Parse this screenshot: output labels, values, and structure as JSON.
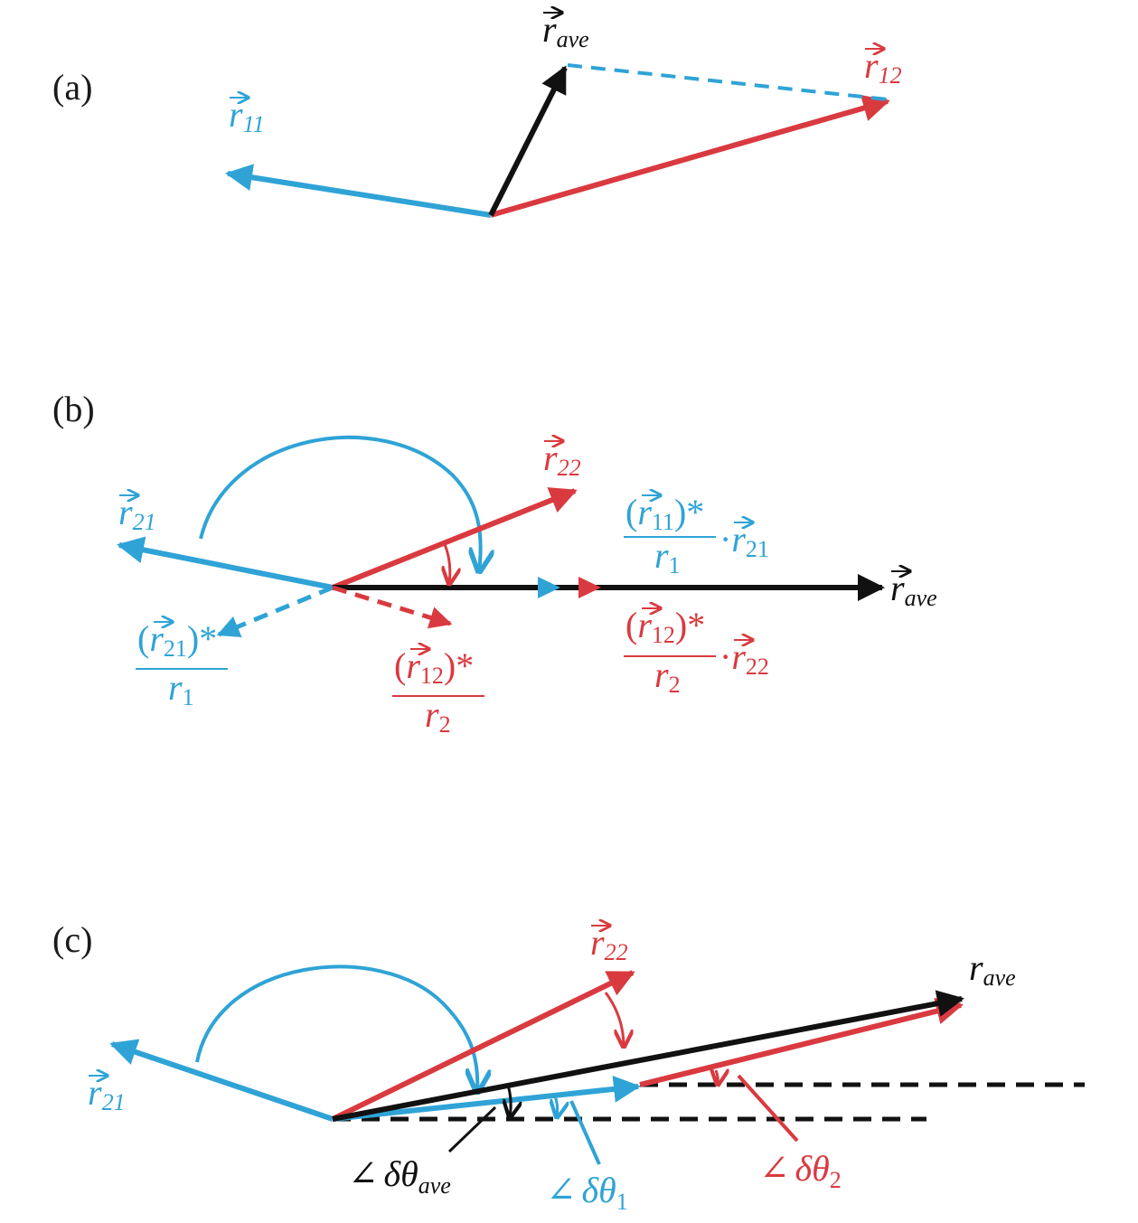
{
  "figure": {
    "panels": [
      {
        "label": "(a)",
        "vectors": [
          {
            "name": "r",
            "sub": "ave",
            "color": "black"
          },
          {
            "name": "r",
            "sub": "12",
            "color": "red"
          },
          {
            "name": "r",
            "sub": "11",
            "color": "blue"
          }
        ]
      },
      {
        "label": "(b)",
        "labels": {
          "r22": {
            "name": "r",
            "sub": "22"
          },
          "r21": {
            "name": "r",
            "sub": "21"
          },
          "rave": {
            "name": "r",
            "sub": "ave"
          },
          "frac_r11_r21": {
            "num_open": "(",
            "num_var": "r",
            "num_sub": "11",
            "num_close": ")*",
            "den_var": "r",
            "den_sub": "1",
            "dot": "·",
            "mul_var": "r",
            "mul_sub": "21"
          },
          "frac_r12_r22": {
            "num_open": "(",
            "num_var": "r",
            "num_sub": "12",
            "num_close": ")*",
            "den_var": "r",
            "den_sub": "2",
            "dot": "·",
            "mul_var": "r",
            "mul_sub": "22"
          },
          "frac_r21": {
            "num_open": "(",
            "num_var": "r",
            "num_sub": "21",
            "num_close": ")*",
            "den_var": "r",
            "den_sub": "1"
          },
          "frac_r12": {
            "num_open": "(",
            "num_var": "r",
            "num_sub": "12",
            "num_close": ")*",
            "den_var": "r",
            "den_sub": "2"
          }
        }
      },
      {
        "label": "(c)",
        "labels": {
          "r22": {
            "name": "r",
            "sub": "22"
          },
          "r21": {
            "name": "r",
            "sub": "21"
          },
          "rave": {
            "name": "r",
            "sub": "ave"
          },
          "dtheta_ave": {
            "angle": "∠",
            "delta": "δθ",
            "sub": "ave"
          },
          "dtheta_1": {
            "angle": "∠",
            "delta": "δθ",
            "sub": "1"
          },
          "dtheta_2": {
            "angle": "∠",
            "delta": "δθ",
            "sub": "2"
          }
        }
      }
    ],
    "colors": {
      "blue": "#2fa3d6",
      "red": "#d93a3f",
      "black": "#111111"
    }
  }
}
